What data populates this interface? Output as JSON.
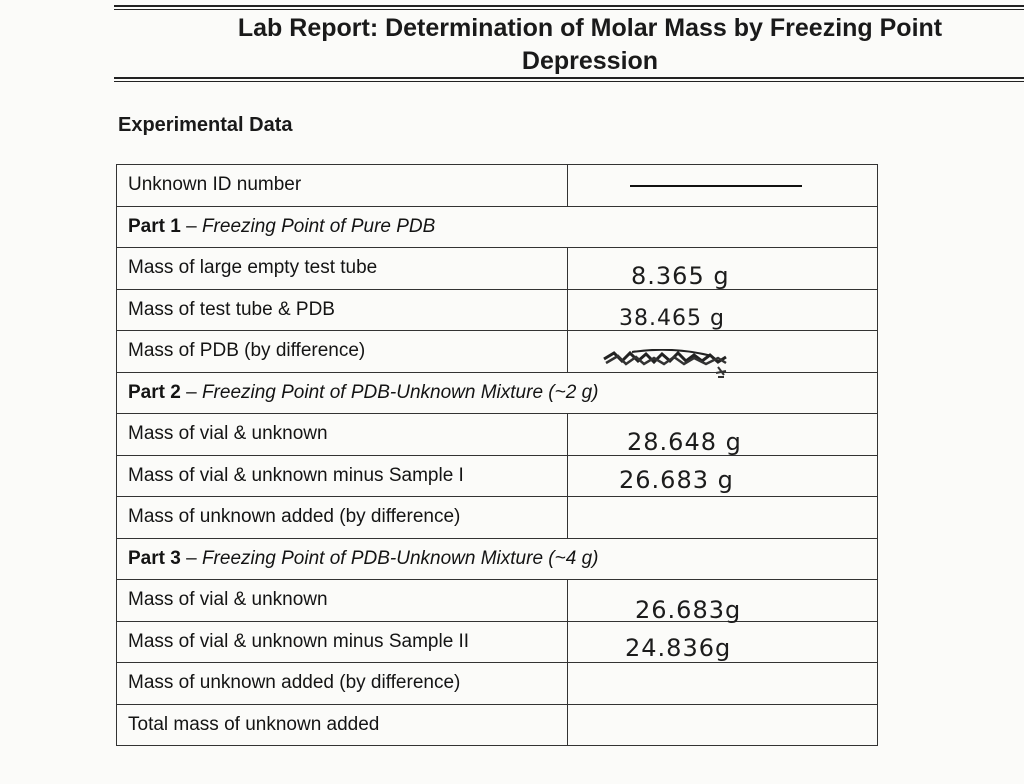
{
  "header": {
    "title_line1": "Lab Report: Determination of Molar Mass by Freezing Point",
    "title_line2": "Depression"
  },
  "section": {
    "heading": "Experimental Data"
  },
  "table": {
    "unknown_id_label": "Unknown ID number",
    "unknown_id_value": "",
    "part1": {
      "number": "Part 1",
      "dash": " – ",
      "name": "Freezing Point of Pure PDB",
      "rows": [
        {
          "label": "Mass of large empty test tube",
          "value": "8.365 g"
        },
        {
          "label": "Mass of test tube & PDB",
          "value": "38.465 g"
        },
        {
          "label": "Mass of PDB (by difference)",
          "value": ""
        }
      ]
    },
    "part2": {
      "number": "Part 2",
      "dash": " – ",
      "name": "Freezing Point of PDB-Unknown Mixture (~2 g)",
      "rows": [
        {
          "label": "Mass of vial & unknown",
          "value": "28.648 g"
        },
        {
          "label": "Mass of vial & unknown minus Sample I",
          "value": "26.683 g"
        },
        {
          "label": "Mass of unknown added (by difference)",
          "value": ""
        }
      ]
    },
    "part3": {
      "number": "Part 3",
      "dash": " – ",
      "name": "Freezing Point of PDB-Unknown Mixture (~4 g)",
      "rows": [
        {
          "label": "Mass of vial & unknown",
          "value": "26.683g"
        },
        {
          "label": "Mass of vial & unknown minus Sample II",
          "value": "24.836g"
        },
        {
          "label": "Mass of unknown added (by difference)",
          "value": ""
        }
      ]
    },
    "total_label": "Total mass of unknown added",
    "total_value": ""
  }
}
